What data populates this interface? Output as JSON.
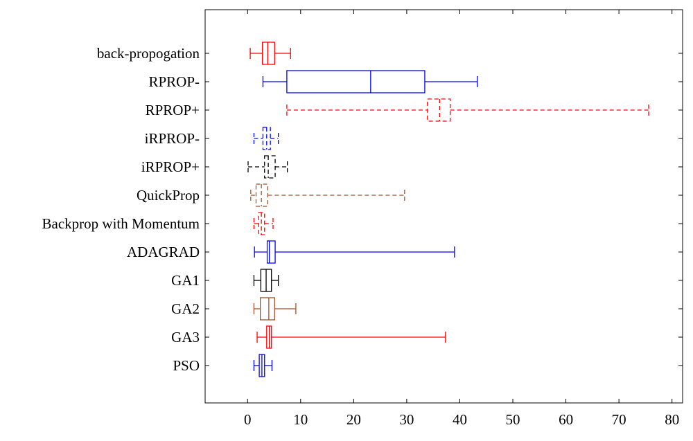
{
  "chart_data": {
    "type": "boxplot",
    "orientation": "horizontal",
    "xlim": [
      -8,
      82
    ],
    "x_ticks": [
      0,
      10,
      20,
      30,
      40,
      50,
      60,
      70,
      80
    ],
    "x_tick_labels": [
      "0",
      "10",
      "20",
      "30",
      "40",
      "50",
      "60",
      "70",
      "80"
    ],
    "series": [
      {
        "name": "back-propogation",
        "color": "#ff0000",
        "dashed": false,
        "whisker_low": 0.5,
        "q1": 2.8,
        "median": 3.8,
        "q3": 5.1,
        "whisker_high": 8.1
      },
      {
        "name": "RPROP-",
        "color": "#0000ff",
        "dashed": false,
        "whisker_low": 2.9,
        "q1": 7.4,
        "median": 23.2,
        "q3": 33.4,
        "whisker_high": 43.3
      },
      {
        "name": "RPROP+",
        "color": "#ff0000",
        "dashed": true,
        "whisker_low": 7.4,
        "q1": 33.9,
        "median": 36.2,
        "q3": 38.2,
        "whisker_high": 75.6
      },
      {
        "name": "iRPROP-",
        "color": "#0000ff",
        "dashed": true,
        "whisker_low": 1.2,
        "q1": 2.9,
        "median": 3.6,
        "q3": 4.3,
        "whisker_high": 5.8
      },
      {
        "name": "iRPROP+",
        "color": "#000000",
        "dashed": true,
        "whisker_low": 0.1,
        "q1": 3.2,
        "median": 3.9,
        "q3": 5.2,
        "whisker_high": 7.5
      },
      {
        "name": "QuickProp",
        "color": "#a0522d",
        "dashed": true,
        "whisker_low": 0.6,
        "q1": 1.6,
        "median": 2.6,
        "q3": 3.8,
        "whisker_high": 29.6
      },
      {
        "name": "Backprop with Momentum",
        "color": "#ff0000",
        "dashed": true,
        "whisker_low": 1.2,
        "q1": 2.1,
        "median": 2.6,
        "q3": 3.2,
        "whisker_high": 4.8
      },
      {
        "name": "ADAGRAD",
        "color": "#0000ff",
        "dashed": false,
        "whisker_low": 1.3,
        "q1": 3.7,
        "median": 4.1,
        "q3": 5.2,
        "whisker_high": 39.0
      },
      {
        "name": "GA1",
        "color": "#000000",
        "dashed": false,
        "whisker_low": 1.2,
        "q1": 2.5,
        "median": 3.5,
        "q3": 4.5,
        "whisker_high": 5.8
      },
      {
        "name": "GA2",
        "color": "#a0522d",
        "dashed": false,
        "whisker_low": 1.2,
        "q1": 2.4,
        "median": 4.0,
        "q3": 5.1,
        "whisker_high": 9.1
      },
      {
        "name": "GA3",
        "color": "#ff0000",
        "dashed": false,
        "whisker_low": 1.8,
        "q1": 3.6,
        "median": 4.1,
        "q3": 4.5,
        "whisker_high": 37.3
      },
      {
        "name": "PSO",
        "color": "#0000ff",
        "dashed": false,
        "whisker_low": 1.2,
        "q1": 2.2,
        "median": 2.7,
        "q3": 3.2,
        "whisker_high": 4.6
      }
    ]
  }
}
